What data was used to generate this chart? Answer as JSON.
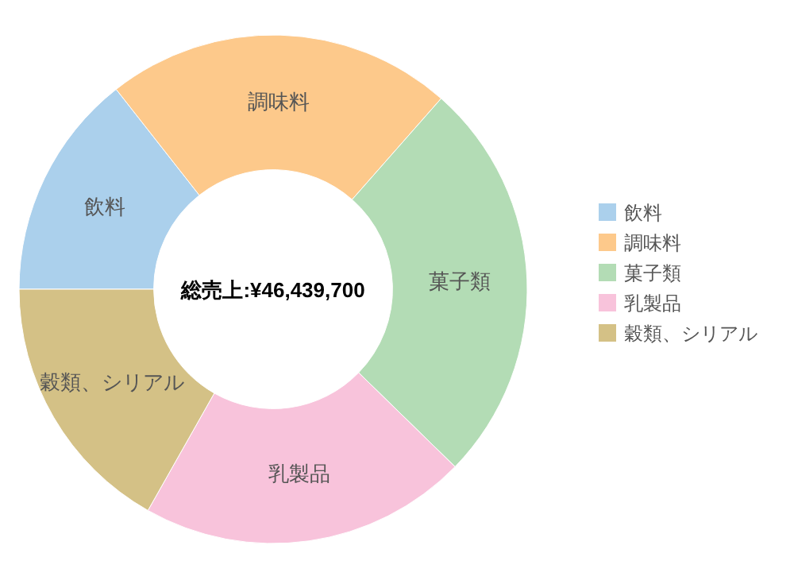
{
  "chart_data": {
    "type": "donut",
    "categories": [
      "飲料",
      "調味料",
      "菓子類",
      "乳製品",
      "穀類、シリアル"
    ],
    "values": [
      14.4,
      22.1,
      25.8,
      20.9,
      16.8
    ],
    "colors": [
      "#abd0ec",
      "#fdc98b",
      "#b3dcb5",
      "#f8c3db",
      "#d4c186"
    ],
    "annotations": [
      "総売上:¥46,439,700"
    ],
    "legend": "right"
  }
}
